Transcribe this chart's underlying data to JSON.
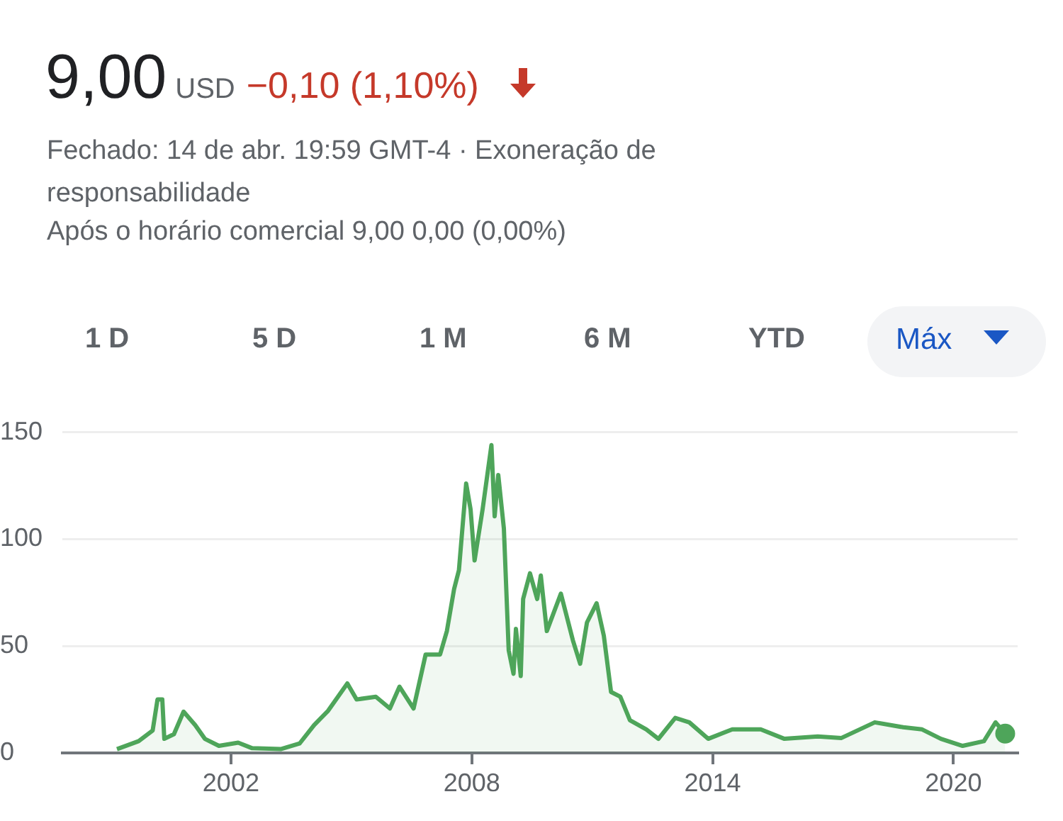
{
  "chart_data": {
    "type": "area",
    "title": "9,00",
    "annotations": [
      "USD",
      "−0,10 (1,10%)",
      "Fechado: 14 de abr. 19:59 GMT-4 · Exoneração de responsabilidade",
      "Após o horário comercial 9,00 0,00 (0,00%)",
      "1 D",
      "5 D",
      "1 M",
      "6 M",
      "YTD",
      "Máx"
    ],
    "series": [
      {
        "color": "#4ea55a",
        "x": [
          1999.16,
          1999.7,
          2000.05,
          2000.17,
          2000.29,
          2000.34,
          2000.58,
          2000.82,
          2001.11,
          2001.35,
          2001.7,
          2002.18,
          2002.53,
          2003.24,
          2003.71,
          2004.07,
          2004.42,
          2004.9,
          2005.13,
          2005.61,
          2005.96,
          2006.2,
          2006.55,
          2006.85,
          2007.21,
          2007.38,
          2007.56,
          2007.68,
          2007.86,
          2007.97,
          2008.07,
          2008.27,
          2008.49,
          2008.57,
          2008.66,
          2008.8,
          2008.92,
          2009.04,
          2009.1,
          2009.22,
          2009.28,
          2009.45,
          2009.63,
          2009.72,
          2009.87,
          2010.22,
          2010.52,
          2010.7,
          2010.87,
          2011.11,
          2011.29,
          2011.47,
          2011.7,
          2011.94,
          2012.35,
          2012.65,
          2013.07,
          2013.42,
          2013.89,
          2014.49,
          2015.2,
          2015.79,
          2016.62,
          2017.21,
          2018.04,
          2018.75,
          2019.22,
          2019.69,
          2020.23,
          2020.76,
          2021.05,
          2021.29
        ],
        "values": [
          1.8,
          5.5,
          10.5,
          25,
          25,
          6.6,
          8.8,
          19.3,
          13,
          6.6,
          3.3,
          4.8,
          2.2,
          1.8,
          4.4,
          13,
          19.7,
          32.5,
          25,
          26.3,
          20.8,
          31,
          20.8,
          46,
          46,
          57,
          76.7,
          85.5,
          126,
          114,
          90,
          114,
          144,
          110.7,
          130,
          105,
          48,
          37,
          58,
          36,
          72,
          84,
          72,
          83,
          57,
          74.5,
          52.6,
          41.7,
          61,
          70,
          54.8,
          28.5,
          26.3,
          15.3,
          11,
          6.6,
          16.4,
          14.3,
          6.6,
          11,
          11,
          6.6,
          7.7,
          7,
          14.3,
          12,
          11,
          6.6,
          3.3,
          5.5,
          14.3,
          9
        ]
      }
    ],
    "xlim": [
      1997.8,
      2021.6
    ],
    "xticks": [
      2002,
      2008,
      2014,
      2020
    ],
    "ylim": [
      0,
      150
    ],
    "yticks": [
      0,
      50,
      100,
      150
    ],
    "grid": "y",
    "legend": false
  }
}
